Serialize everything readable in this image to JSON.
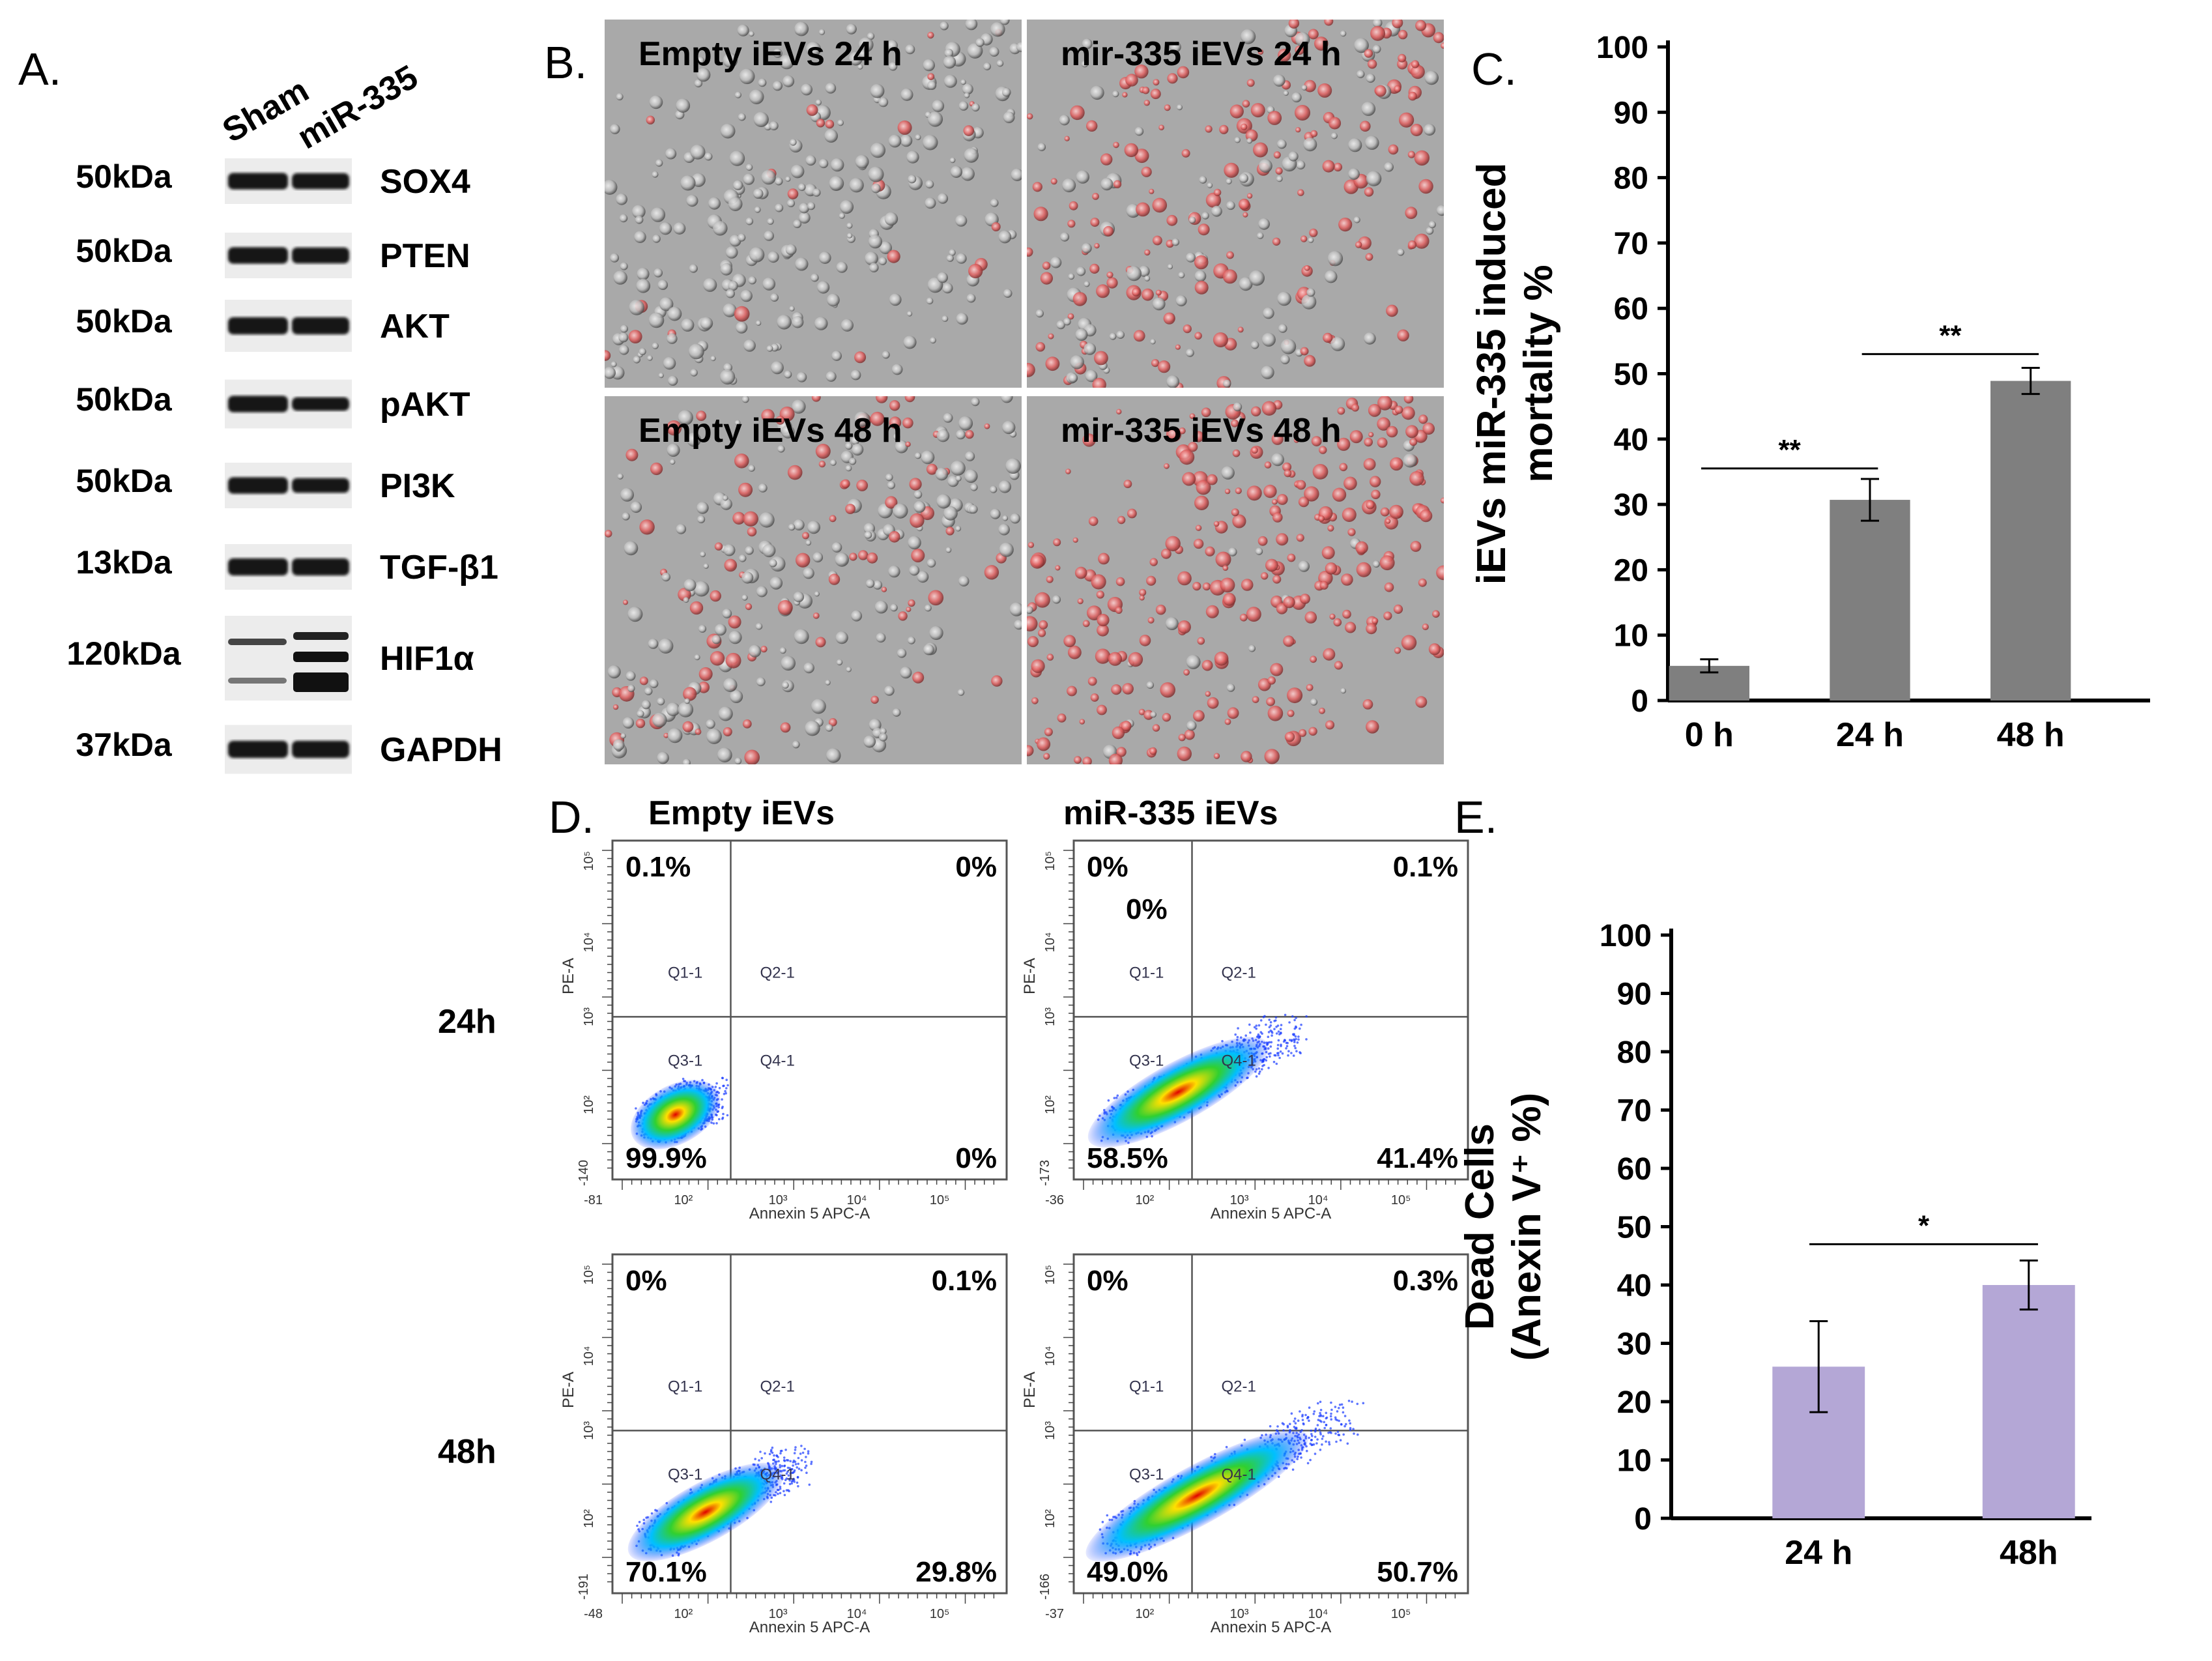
{
  "panels": {
    "a": {
      "label": "A.",
      "columns": [
        "Sham",
        "miR-335"
      ],
      "bands": [
        {
          "kda": "50kDa",
          "protein": "SOX4",
          "sham": 0.85,
          "mir": 0.8
        },
        {
          "kda": "50kDa",
          "protein": "PTEN",
          "sham": 0.85,
          "mir": 0.8
        },
        {
          "kda": "50kDa",
          "protein": "AKT",
          "sham": 0.9,
          "mir": 0.9
        },
        {
          "kda": "50kDa",
          "protein": "pAKT",
          "sham": 0.85,
          "mir": 0.6
        },
        {
          "kda": "50kDa",
          "protein": "PI3K",
          "sham": 0.85,
          "mir": 0.7
        },
        {
          "kda": "13kDa",
          "protein": "TGF-β1",
          "sham": 0.9,
          "mir": 0.9
        },
        {
          "kda": "120kDa",
          "protein": "HIF1α",
          "sham": 0.5,
          "mir": 0.95
        },
        {
          "kda": "37kDa",
          "protein": "GAPDH",
          "sham": 0.9,
          "mir": 0.9
        }
      ]
    },
    "b": {
      "label": "B.",
      "images": [
        {
          "title": "Empty iEVs 24 h",
          "red": 0.05
        },
        {
          "title": "mir-335 iEVs 24 h",
          "red": 0.6
        },
        {
          "title": "Empty iEVs 48 h",
          "red": 0.35
        },
        {
          "title": "mir-335 iEVs 48 h",
          "red": 0.9
        }
      ]
    },
    "d": {
      "label": "D.",
      "col_headers": [
        "Empty iEVs",
        "miR-335 iEVs"
      ],
      "row_headers": [
        "24h",
        "48h"
      ],
      "x_axis_label": "Annexin 5 APC-A",
      "y_axis_label": "PE-A",
      "gate_labels": [
        "Q1-1",
        "Q2-1",
        "Q3-1",
        "Q4-1"
      ],
      "plots": [
        {
          "q1": "0.1%",
          "q2": "0%",
          "q3": "99.9%",
          "q4": "0%",
          "x_min": "-81",
          "y_min": "-140",
          "spread": 0.05,
          "extra": ""
        },
        {
          "q1": "0%",
          "q2": "0.1%",
          "q3": "58.5%",
          "q4": "41.4%",
          "x_min": "-36",
          "y_min": "-173",
          "spread": 0.6,
          "extra": "0%"
        },
        {
          "q1": "0%",
          "q2": "0.1%",
          "q3": "70.1%",
          "q4": "29.8%",
          "x_min": "-48",
          "y_min": "-191",
          "spread": 0.45,
          "extra": ""
        },
        {
          "q1": "0%",
          "q2": "0.3%",
          "q3": "49.0%",
          "q4": "50.7%",
          "x_min": "-37",
          "y_min": "-166",
          "spread": 0.85,
          "extra": ""
        }
      ],
      "x_ticks": [
        "10²",
        "10³",
        "10⁴",
        "10⁵"
      ],
      "y_ticks": [
        "10²",
        "10³",
        "10⁴",
        "10⁵"
      ]
    }
  },
  "chart_data": [
    {
      "panel": "C.",
      "type": "bar",
      "categories": [
        "0 h",
        "24 h",
        "48 h"
      ],
      "values": [
        5.3,
        30.7,
        48.9
      ],
      "errors": [
        1.0,
        3.2,
        2.0
      ],
      "ylabel_lines": [
        "iEVs miR-335 induced",
        "mortality %"
      ],
      "ylim": [
        0,
        100
      ],
      "yticks": [
        0,
        10,
        20,
        30,
        40,
        50,
        60,
        70,
        80,
        90,
        100
      ],
      "color": "#7f7f7f",
      "significance": [
        {
          "from": 0,
          "to": 1,
          "label": "**",
          "y": 35.5
        },
        {
          "from": 1,
          "to": 2,
          "label": "**",
          "y": 53
        }
      ]
    },
    {
      "panel": "E.",
      "type": "bar",
      "categories": [
        "24 h",
        "48h"
      ],
      "values": [
        26,
        40
      ],
      "errors": [
        7.8,
        4.2
      ],
      "ylabel_lines": [
        "Dead Cells",
        "(Anexin V⁺ %)"
      ],
      "ylim": [
        0,
        100
      ],
      "yticks": [
        0,
        10,
        20,
        30,
        40,
        50,
        60,
        70,
        80,
        90,
        100
      ],
      "color": "#b4a7d6",
      "significance": [
        {
          "from": 0,
          "to": 1,
          "label": "*",
          "y": 47
        }
      ]
    }
  ]
}
